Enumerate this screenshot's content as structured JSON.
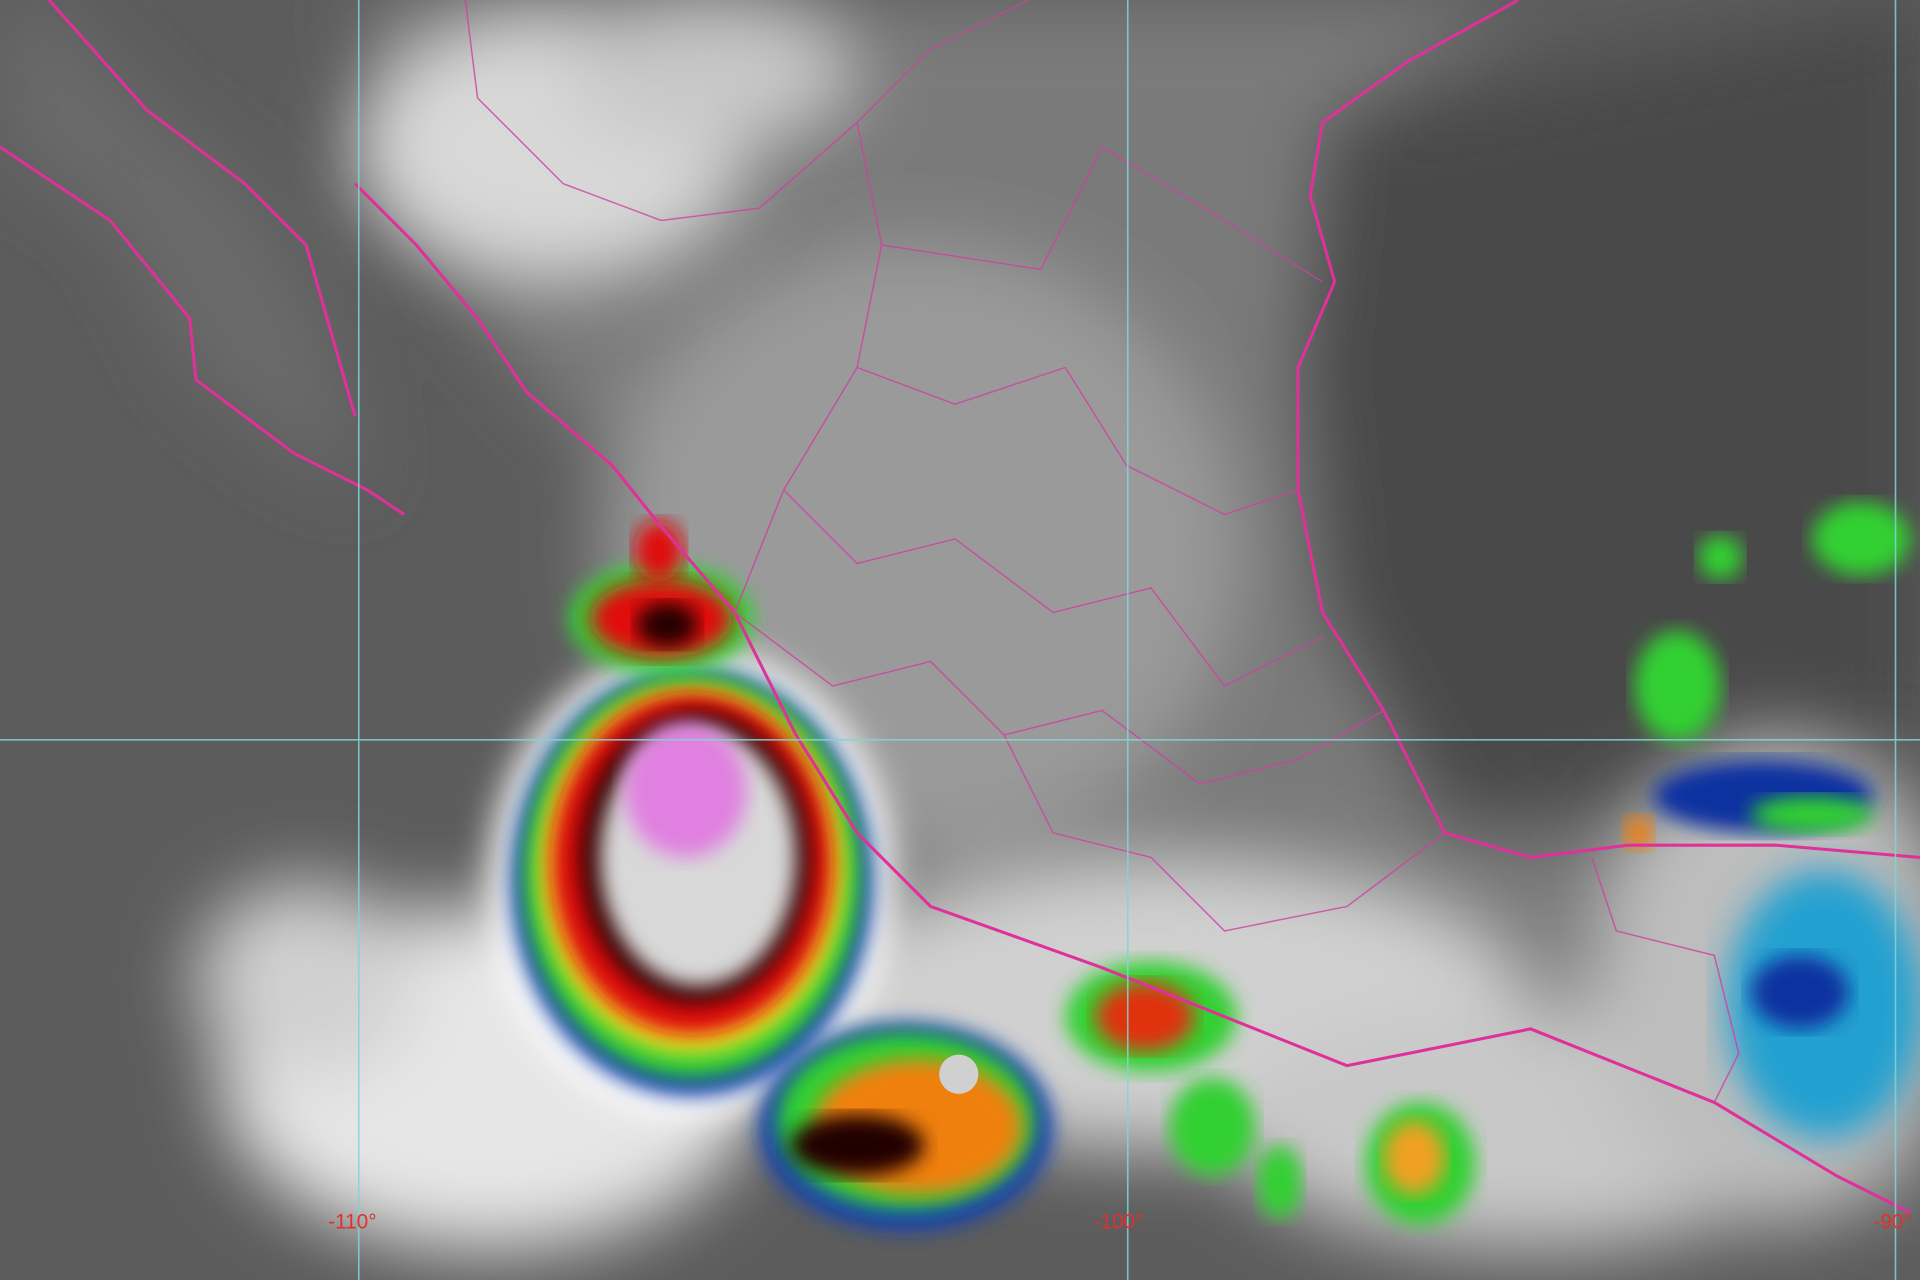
{
  "map": {
    "type": "infrared satellite image",
    "longitude_labels": [
      "-110°",
      "-100°",
      "-90°"
    ],
    "colors": {
      "background": "#5a5a5a",
      "land": "#8a8a8a",
      "borders": "#e0309a",
      "grid": "#7fd6d6",
      "label": "#e03030"
    },
    "color_scale": [
      "#ffffff",
      "#20c0e0",
      "#1030a0",
      "#30d030",
      "#f0f020",
      "#f08010",
      "#e01010",
      "#400000",
      "#202020",
      "#e080e0"
    ]
  }
}
